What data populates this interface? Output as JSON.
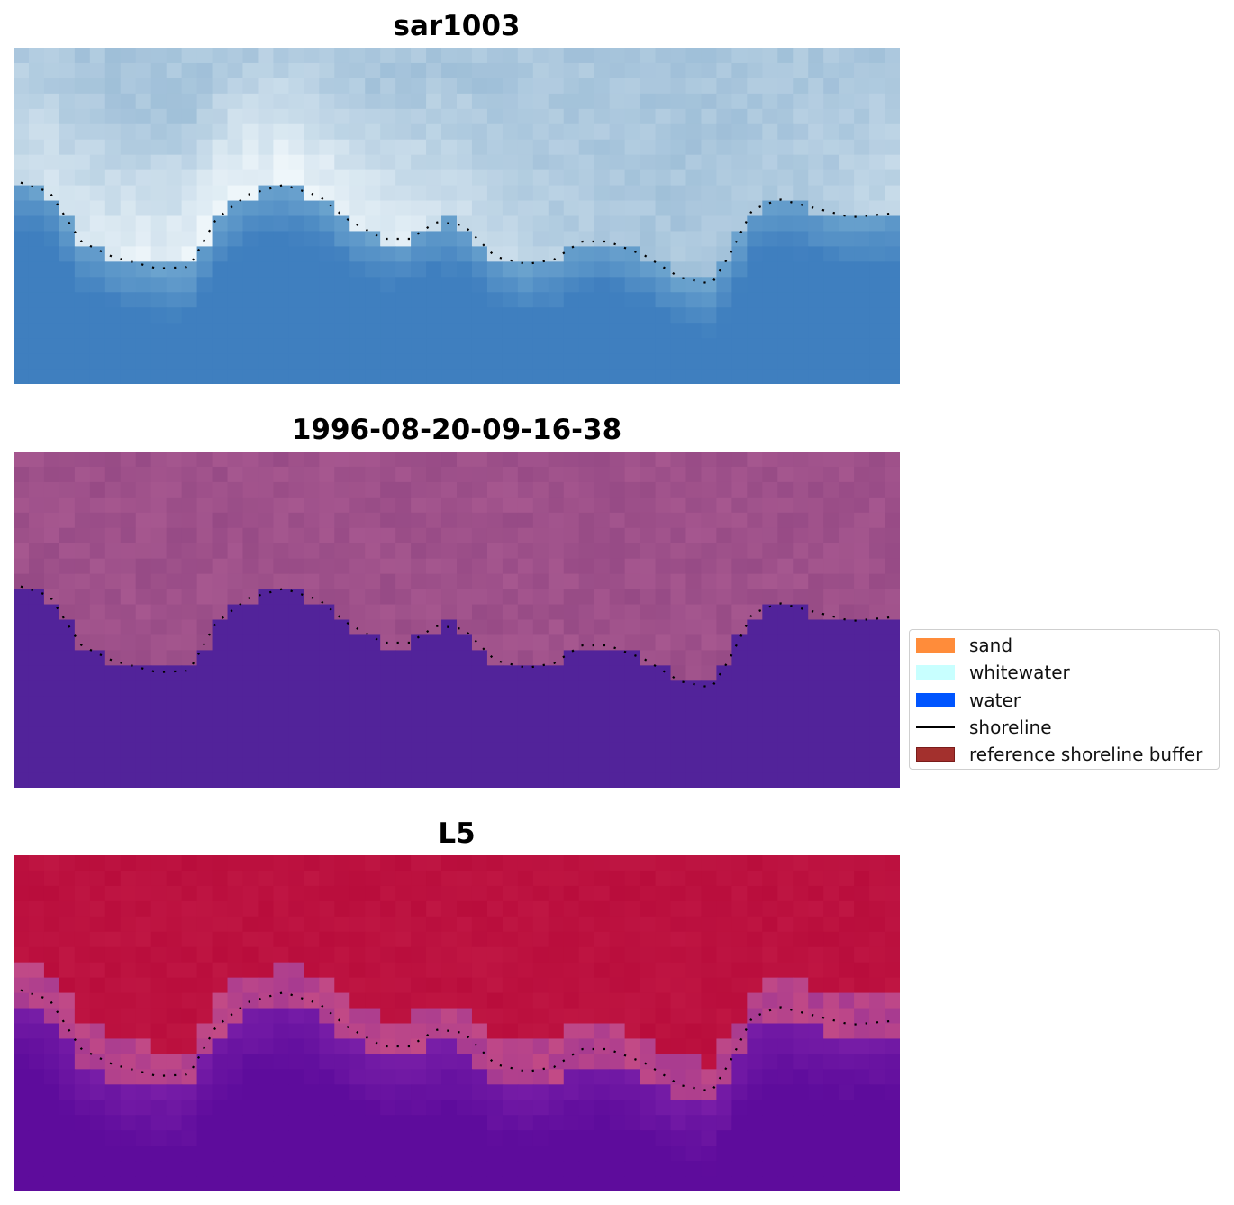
{
  "panels": [
    {
      "title": "sar1003",
      "kind": "rgb"
    },
    {
      "title": "1996-08-20-09-16-38",
      "kind": "classified"
    },
    {
      "title": "L5",
      "kind": "index"
    }
  ],
  "legend": {
    "items": [
      {
        "label": "sand",
        "color": "#ff8c3a",
        "kind": "patch"
      },
      {
        "label": "whitewater",
        "color": "#c8ffff",
        "kind": "patch"
      },
      {
        "label": "water",
        "color": "#0055ff",
        "kind": "patch"
      },
      {
        "label": "shoreline",
        "color": "#000000",
        "kind": "line"
      },
      {
        "label": "reference shoreline buffer",
        "color": "#a3302d",
        "kind": "patch"
      }
    ]
  },
  "colors": {
    "sky_light": "#eef6fa",
    "water_blue": "#3f7fbf",
    "land_pink": "#a6578f",
    "water_purple": "#52239a",
    "index_red": "#b90d3c",
    "index_purple": "#5e0c9c",
    "shoreline_dots": "#000000"
  }
}
